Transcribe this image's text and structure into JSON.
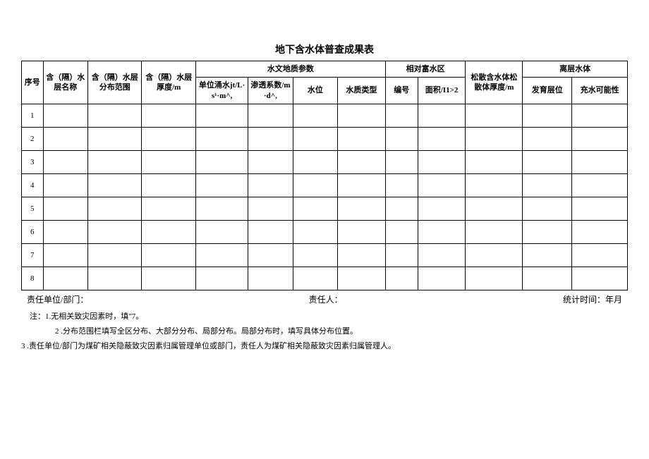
{
  "title": "地下含水体普查成果表",
  "columns": {
    "seq": "序号",
    "name": "含（隔）水层名称",
    "dist": "含（隔）水层分布范围",
    "thick": "含（隔）水层厚度/m",
    "hydro_group": "水文地质参数",
    "unit_water": "单位涌水jt/L·s¹·m^,",
    "perm": "渗透系数/m·d^,",
    "level": "水位",
    "wtype": "水质类型",
    "rich_group": "相对富水区",
    "rid": "编号",
    "area": "面积/I1>2",
    "loose": "松散含水体松散体厚度/m",
    "strata_group": "离层水体",
    "strata_dev": "发育层位",
    "possibility": "充水可能性"
  },
  "row_numbers": [
    "1",
    "2",
    "3",
    "4",
    "5",
    "6",
    "7",
    "8"
  ],
  "footer": {
    "unit": "责任单位/部门：",
    "person": "责任人：",
    "time": "统计时间：年月"
  },
  "notes": {
    "n1": "注：1.无相关致灾因素时，填\"7。",
    "n2": "2 .分布范围栏填写全区分布、大部分分布、局部分布。局部分布时，填写具体分布位置。",
    "n3": "3 .责任单位/部门为煤矿相关隐蔽致灾因素归属管理单位或部门，责任人为煤矿相关隐蔽致灾因素归属管理人。"
  }
}
